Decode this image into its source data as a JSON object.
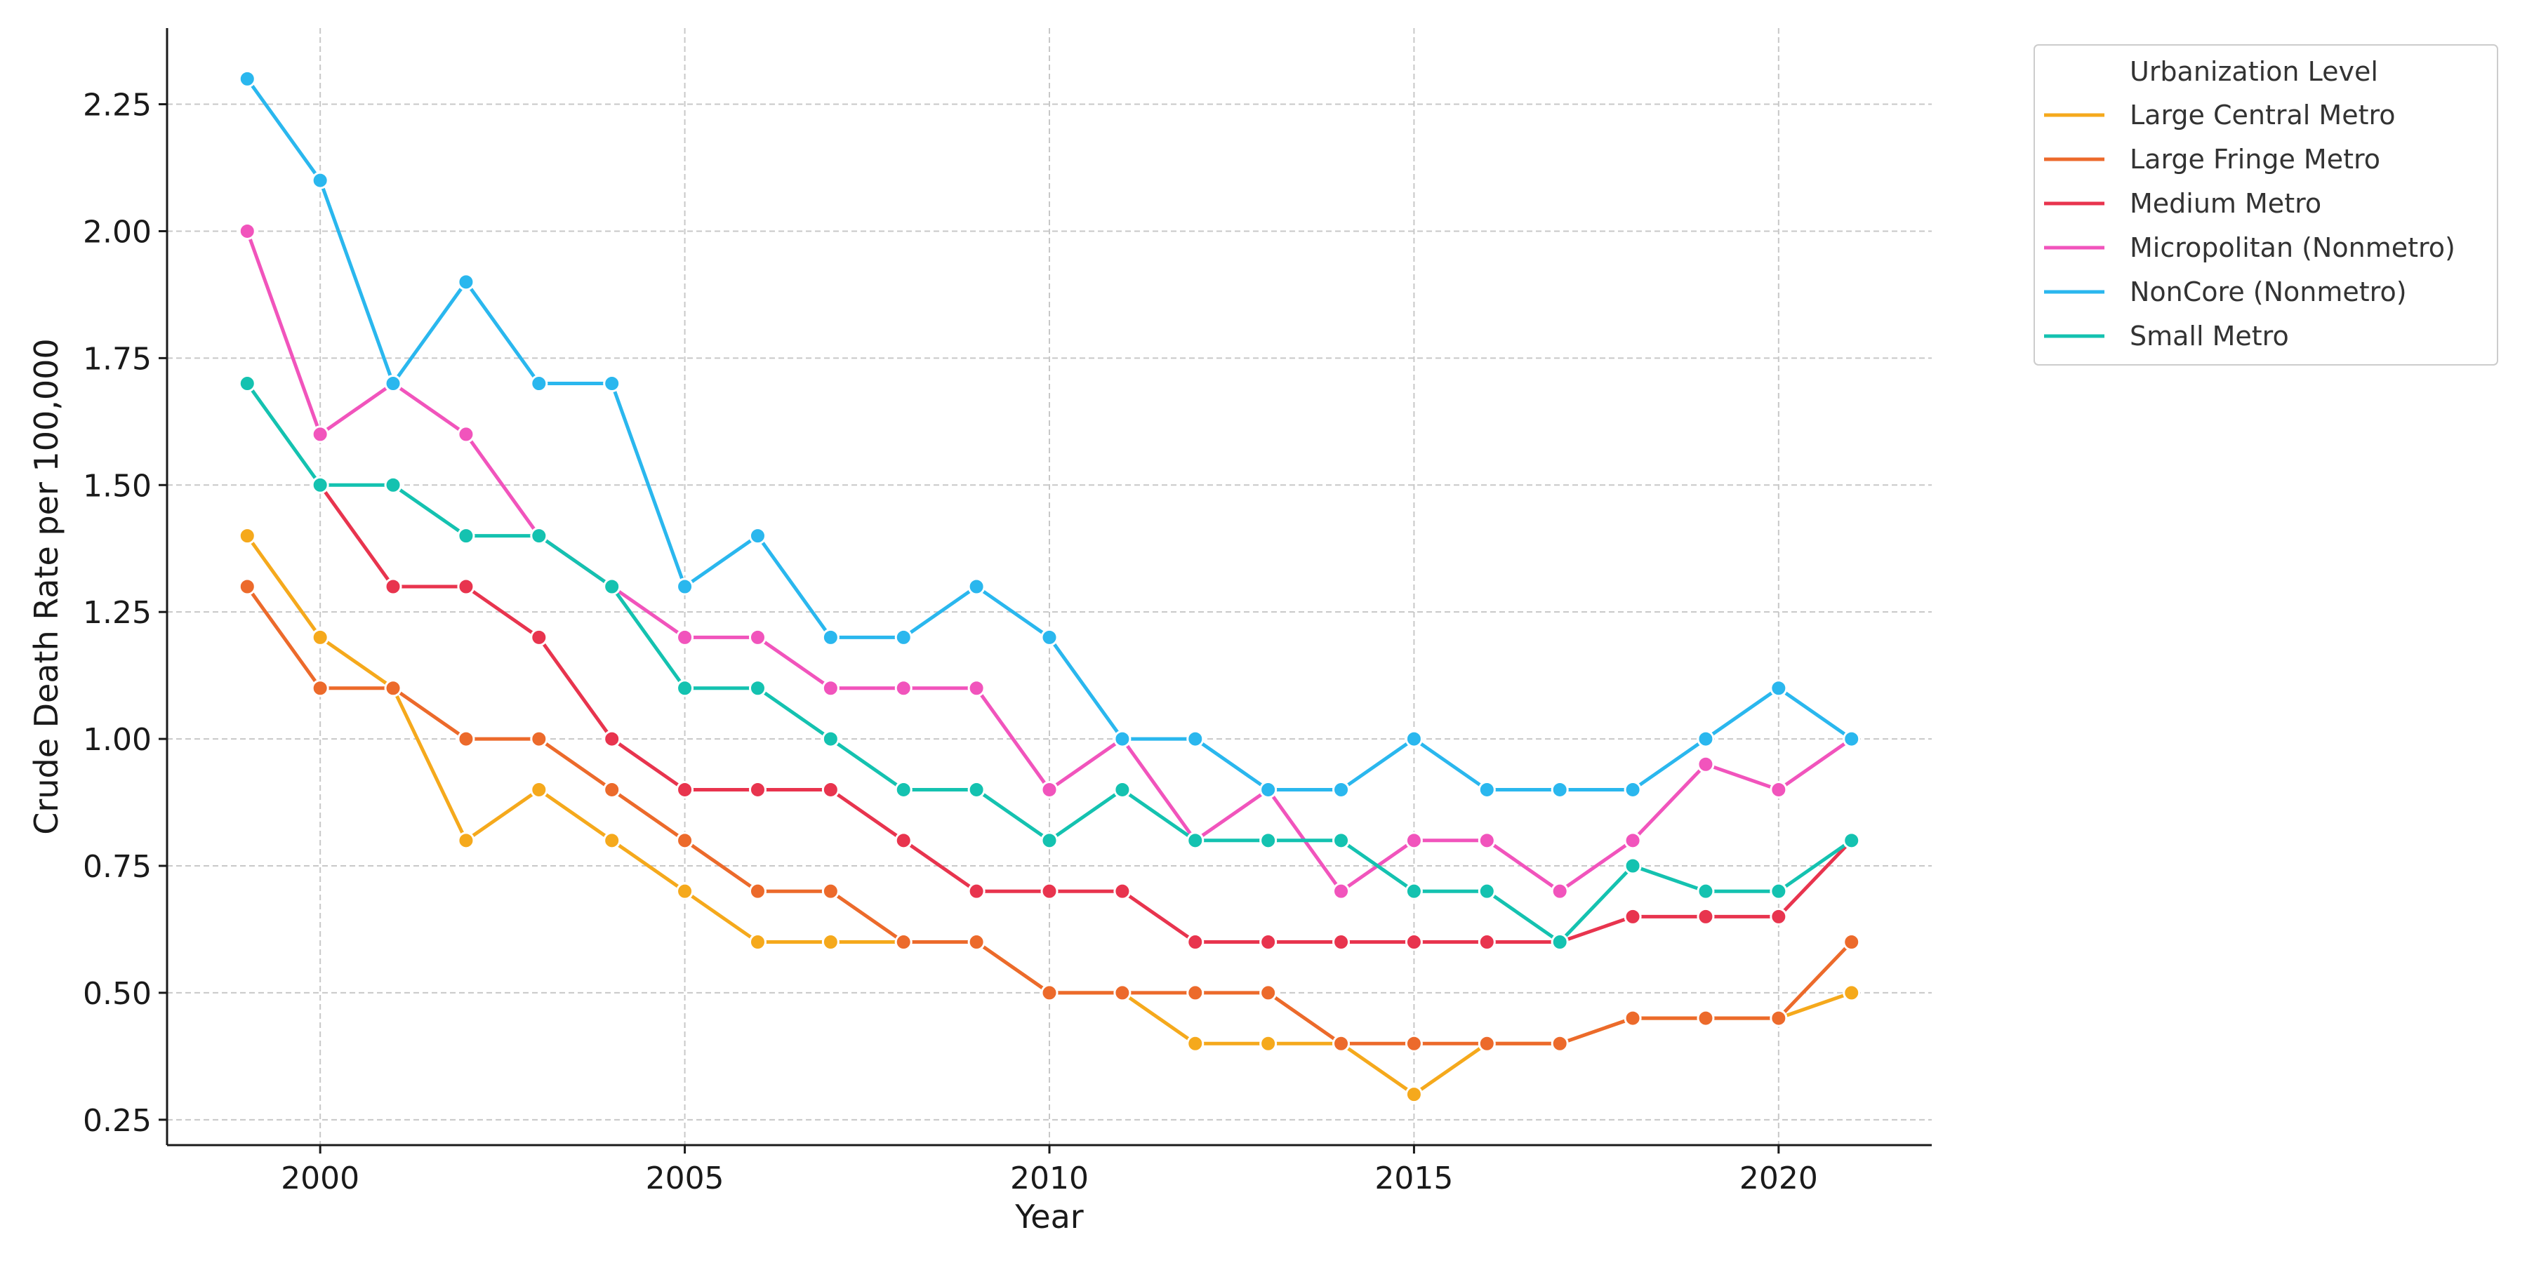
{
  "chart_data": {
    "type": "line",
    "title": "",
    "xlabel": "Year",
    "ylabel": "Crude Death Rate per 100,000",
    "xlim": [
      1997.9,
      2022.1
    ],
    "ylim": [
      0.2,
      2.4
    ],
    "x_ticks": [
      2000,
      2005,
      2010,
      2015,
      2020
    ],
    "y_ticks": [
      0.25,
      0.5,
      0.75,
      1.0,
      1.25,
      1.5,
      1.75,
      2.0,
      2.25
    ],
    "grid": true,
    "legend": {
      "title": "Urbanization Level",
      "placement": "outside-top-right"
    },
    "x": [
      1999,
      2000,
      2001,
      2002,
      2003,
      2004,
      2005,
      2006,
      2007,
      2008,
      2009,
      2010,
      2011,
      2012,
      2013,
      2014,
      2015,
      2016,
      2017,
      2018,
      2019,
      2020,
      2021
    ],
    "series": [
      {
        "name": "Large Central Metro",
        "color": "#f5a91c",
        "values": [
          1.4,
          1.2,
          1.1,
          0.8,
          0.9,
          0.8,
          0.7,
          0.6,
          0.6,
          0.6,
          0.6,
          0.5,
          0.5,
          0.4,
          0.4,
          0.4,
          0.3,
          0.4,
          0.4,
          0.45,
          0.45,
          0.45,
          0.5
        ]
      },
      {
        "name": "Large Fringe Metro",
        "color": "#ec6a2b",
        "values": [
          1.3,
          1.1,
          1.1,
          1.0,
          1.0,
          0.9,
          0.8,
          0.7,
          0.7,
          0.6,
          0.6,
          0.5,
          0.5,
          0.5,
          0.5,
          0.4,
          0.4,
          0.4,
          0.4,
          0.45,
          0.45,
          0.45,
          0.6
        ]
      },
      {
        "name": "Medium Metro",
        "color": "#e8344e",
        "values": [
          null,
          1.5,
          1.3,
          1.3,
          1.2,
          1.0,
          0.9,
          0.9,
          0.9,
          0.8,
          0.7,
          0.7,
          0.7,
          0.6,
          0.6,
          0.6,
          0.6,
          0.6,
          0.6,
          0.65,
          0.65,
          0.65,
          0.8
        ]
      },
      {
        "name": "Micropolitan (Nonmetro)",
        "color": "#f154bc",
        "values": [
          2.0,
          1.6,
          1.7,
          1.6,
          1.4,
          1.3,
          1.2,
          1.2,
          1.1,
          1.1,
          1.1,
          0.9,
          1.0,
          0.8,
          0.9,
          0.7,
          0.8,
          0.8,
          0.7,
          0.8,
          0.95,
          0.9,
          1.0
        ]
      },
      {
        "name": "NonCore (Nonmetro)",
        "color": "#2ab7ee",
        "values": [
          2.3,
          2.1,
          1.7,
          1.9,
          1.7,
          1.7,
          1.3,
          1.4,
          1.2,
          1.2,
          1.3,
          1.2,
          1.0,
          1.0,
          0.9,
          0.9,
          1.0,
          0.9,
          0.9,
          0.9,
          1.0,
          1.1,
          1.0
        ]
      },
      {
        "name": "Small Metro",
        "color": "#14c2b0",
        "values": [
          1.7,
          1.5,
          1.5,
          1.4,
          1.4,
          1.3,
          1.1,
          1.1,
          1.0,
          0.9,
          0.9,
          0.8,
          0.9,
          0.8,
          0.8,
          0.8,
          0.7,
          0.7,
          0.6,
          0.75,
          0.7,
          0.7,
          0.8
        ]
      }
    ]
  }
}
